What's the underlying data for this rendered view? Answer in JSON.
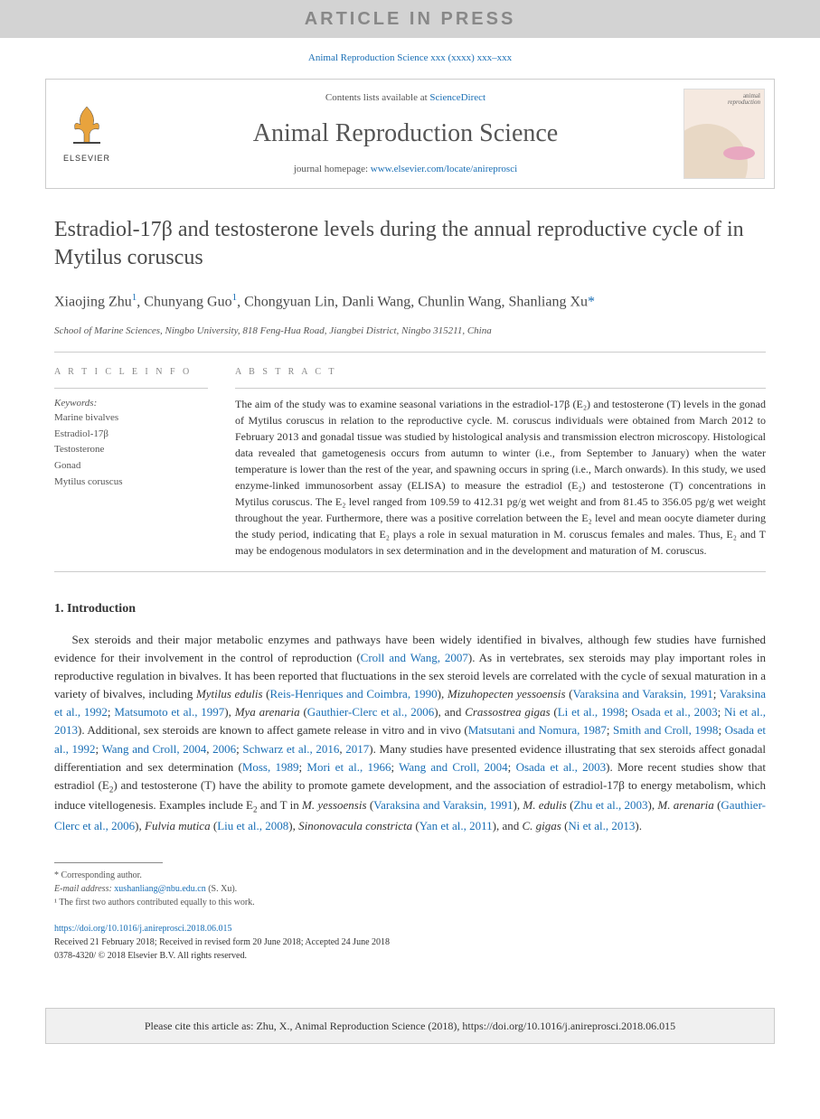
{
  "banner": {
    "text": "ARTICLE IN PRESS"
  },
  "citation_top": "Animal Reproduction Science xxx (xxxx) xxx–xxx",
  "header": {
    "contents_prefix": "Contents lists available at ",
    "contents_link": "ScienceDirect",
    "journal": "Animal Reproduction Science",
    "homepage_prefix": "journal homepage: ",
    "homepage_url": "www.elsevier.com/locate/anireprosci",
    "publisher": "ELSEVIER",
    "cover_label_1": "animal",
    "cover_label_2": "reproduction"
  },
  "article": {
    "title": "Estradiol-17β and testosterone levels during the annual reproductive cycle of in Mytilus coruscus",
    "authors_html": "Xiaojing Zhu<sup>1</sup>, Chunyang Guo<sup>1</sup>, Chongyuan Lin, Danli Wang, Chunlin Wang, Shanliang Xu<span class='star'>*</span>",
    "affiliation": "School of Marine Sciences, Ningbo University, 818 Feng-Hua Road, Jiangbei District, Ningbo 315211, China"
  },
  "info": {
    "section_label": "A R T I C L E   I N F O",
    "keywords_label": "Keywords:",
    "keywords": [
      "Marine bivalves",
      "Estradiol-17β",
      "Testosterone",
      "Gonad",
      "Mytilus coruscus"
    ]
  },
  "abstract": {
    "section_label": "A B S T R A C T",
    "text": "The aim of the study was to examine seasonal variations in the estradiol-17β (E₂) and testosterone (T) levels in the gonad of Mytilus coruscus in relation to the reproductive cycle. M. coruscus individuals were obtained from March 2012 to February 2013 and gonadal tissue was studied by histological analysis and transmission electron microscopy. Histological data revealed that gametogenesis occurs from autumn to winter (i.e., from September to January) when the water temperature is lower than the rest of the year, and spawning occurs in spring (i.e., March onwards). In this study, we used enzyme-linked immunosorbent assay (ELISA) to measure the estradiol (E₂) and testosterone (T) concentrations in Mytilus coruscus. The E₂ level ranged from 109.59 to 412.31 pg/g wet weight and from 81.45 to 356.05 pg/g wet weight throughout the year. Furthermore, there was a positive correlation between the E₂ level and mean oocyte diameter during the study period, indicating that E₂ plays a role in sexual maturation in M. coruscus females and males. Thus, E₂ and T may be endogenous modulators in sex determination and in the development and maturation of M. coruscus."
  },
  "section1": {
    "heading": "1. Introduction",
    "paragraph_html": "Sex steroids and their major metabolic enzymes and pathways have been widely identified in bivalves, although few studies have furnished evidence for their involvement in the control of reproduction (<a href='#'>Croll and Wang, 2007</a>). As in vertebrates, sex steroids may play important roles in reproductive regulation in bivalves. It has been reported that fluctuations in the sex steroid levels are correlated with the cycle of sexual maturation in a variety of bivalves, including <em>Mytilus edulis</em> (<a href='#'>Reis-Henriques and Coimbra, 1990</a>), <em>Mizuhopecten yessoensis</em> (<a href='#'>Varaksina and Varaksin, 1991</a>; <a href='#'>Varaksina et al., 1992</a>; <a href='#'>Matsumoto et al., 1997</a>), <em>Mya arenaria</em> (<a href='#'>Gauthier-Clerc et al., 2006</a>), and <em>Crassostrea gigas</em> (<a href='#'>Li et al., 1998</a>; <a href='#'>Osada et al., 2003</a>; <a href='#'>Ni et al., 2013</a>). Additional, sex steroids are known to affect gamete release in vitro and in vivo (<a href='#'>Matsutani and Nomura, 1987</a>; <a href='#'>Smith and Croll, 1998</a>; <a href='#'>Osada et al., 1992</a>; <a href='#'>Wang and Croll, 2004</a>, <a href='#'>2006</a>; <a href='#'>Schwarz et al., 2016</a>, <a href='#'>2017</a>). Many studies have presented evidence illustrating that sex steroids affect gonadal differentiation and sex determination (<a href='#'>Moss, 1989</a>; <a href='#'>Mori et al., 1966</a>; <a href='#'>Wang and Croll, 2004</a>; <a href='#'>Osada et al., 2003</a>). More recent studies show that estradiol (E<sub>2</sub>) and testosterone (T) have the ability to promote gamete development, and the association of estradiol-17β to energy metabolism, which induce vitellogenesis. Examples include E<sub>2</sub> and T in <em>M. yessoensis</em> (<a href='#'>Varaksina and Varaksin, 1991</a>), <em>M. edulis</em> (<a href='#'>Zhu et al., 2003</a>), <em>M. arenaria</em> (<a href='#'>Gauthier-Clerc et al., 2006</a>), <em>Fulvia mutica</em> (<a href='#'>Liu et al., 2008</a>), <em>Sinonovacula constricta</em> (<a href='#'>Yan et al., 2011</a>), and <em>C. gigas</em> (<a href='#'>Ni et al., 2013</a>)."
  },
  "footnotes": {
    "corresponding": "* Corresponding author.",
    "email_label": "E-mail address: ",
    "email": "xushanliang@nbu.edu.cn",
    "email_suffix": " (S. Xu).",
    "contrib": "¹ The first two authors contributed equally to this work."
  },
  "doi": {
    "url": "https://doi.org/10.1016/j.anireprosci.2018.06.015",
    "history": "Received 21 February 2018; Received in revised form 20 June 2018; Accepted 24 June 2018",
    "issn": "0378-4320/ © 2018 Elsevier B.V. All rights reserved."
  },
  "cite_box": "Please cite this article as: Zhu, X., Animal Reproduction Science (2018), https://doi.org/10.1016/j.anireprosci.2018.06.015",
  "colors": {
    "link": "#1a6fb5",
    "banner_bg": "#d3d3d3",
    "banner_fg": "#888888",
    "text": "#333333",
    "muted": "#555555",
    "border": "#cccccc"
  }
}
